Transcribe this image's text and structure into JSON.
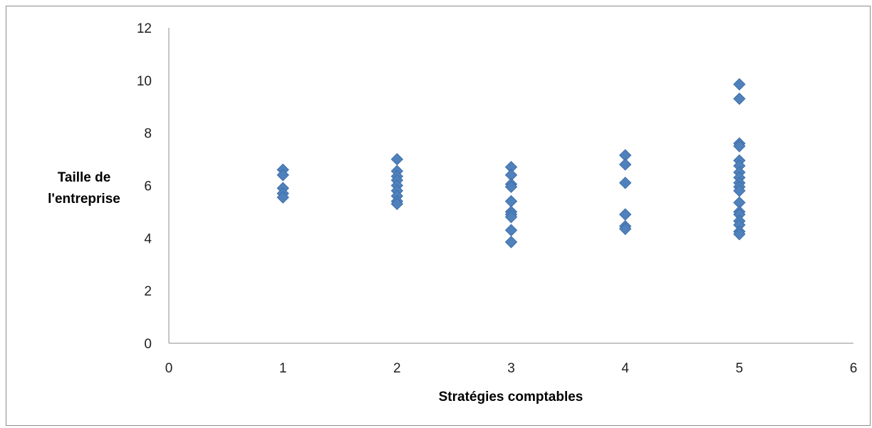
{
  "chart_data": {
    "type": "scatter",
    "title": "",
    "xlabel": "Stratégies comptables",
    "ylabel_lines": [
      "Taille de",
      "l'entreprise"
    ],
    "xlim": [
      0,
      6
    ],
    "ylim": [
      0,
      12
    ],
    "x_ticks": [
      0,
      1,
      2,
      3,
      4,
      5,
      6
    ],
    "y_ticks": [
      0,
      2,
      4,
      6,
      8,
      10,
      12
    ],
    "x_tick_labels": [
      "0",
      "1",
      "2",
      "3",
      "4",
      "5",
      "6"
    ],
    "y_tick_labels": [
      "0",
      "2",
      "4",
      "6",
      "8",
      "10",
      "12"
    ],
    "grid": false,
    "legend": "none",
    "marker": "diamond",
    "marker_color": "#4f81bd",
    "marker_edge_color": "#3f6fa8",
    "axis_color": "#8c8c8c",
    "series": [
      {
        "points": [
          {
            "x": 1,
            "y": 6.6
          },
          {
            "x": 1,
            "y": 6.4
          },
          {
            "x": 1,
            "y": 5.9
          },
          {
            "x": 1,
            "y": 5.7
          },
          {
            "x": 1,
            "y": 5.55
          },
          {
            "x": 2,
            "y": 7.0
          },
          {
            "x": 2,
            "y": 6.55
          },
          {
            "x": 2,
            "y": 6.35
          },
          {
            "x": 2,
            "y": 6.2
          },
          {
            "x": 2,
            "y": 6.0
          },
          {
            "x": 2,
            "y": 5.8
          },
          {
            "x": 2,
            "y": 5.6
          },
          {
            "x": 2,
            "y": 5.4
          },
          {
            "x": 2,
            "y": 5.3
          },
          {
            "x": 3,
            "y": 6.7
          },
          {
            "x": 3,
            "y": 6.4
          },
          {
            "x": 3,
            "y": 6.05
          },
          {
            "x": 3,
            "y": 5.95
          },
          {
            "x": 3,
            "y": 5.4
          },
          {
            "x": 3,
            "y": 5.0
          },
          {
            "x": 3,
            "y": 4.9
          },
          {
            "x": 3,
            "y": 4.8
          },
          {
            "x": 3,
            "y": 4.3
          },
          {
            "x": 3,
            "y": 3.85
          },
          {
            "x": 4,
            "y": 7.15
          },
          {
            "x": 4,
            "y": 6.8
          },
          {
            "x": 4,
            "y": 6.1
          },
          {
            "x": 4,
            "y": 4.9
          },
          {
            "x": 4,
            "y": 4.45
          },
          {
            "x": 4,
            "y": 4.35
          },
          {
            "x": 5,
            "y": 9.85
          },
          {
            "x": 5,
            "y": 9.3
          },
          {
            "x": 5,
            "y": 7.6
          },
          {
            "x": 5,
            "y": 7.5
          },
          {
            "x": 5,
            "y": 6.95
          },
          {
            "x": 5,
            "y": 6.75
          },
          {
            "x": 5,
            "y": 6.5
          },
          {
            "x": 5,
            "y": 6.3
          },
          {
            "x": 5,
            "y": 6.1
          },
          {
            "x": 5,
            "y": 5.95
          },
          {
            "x": 5,
            "y": 5.8
          },
          {
            "x": 5,
            "y": 5.35
          },
          {
            "x": 5,
            "y": 5.0
          },
          {
            "x": 5,
            "y": 4.9
          },
          {
            "x": 5,
            "y": 4.65
          },
          {
            "x": 5,
            "y": 4.5
          },
          {
            "x": 5,
            "y": 4.25
          },
          {
            "x": 5,
            "y": 4.15
          }
        ]
      }
    ]
  }
}
